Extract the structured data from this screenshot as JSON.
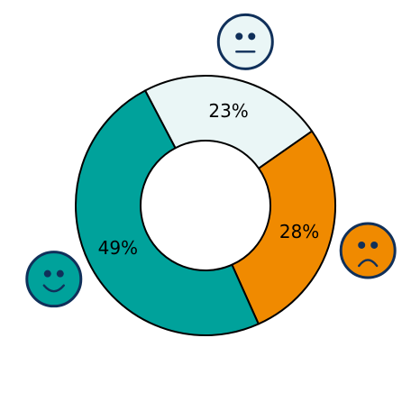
{
  "chart_data": {
    "type": "pie",
    "variant": "donut",
    "slices": [
      {
        "label": "23%",
        "value": 23,
        "color": "#eaf6f6",
        "icon": "neutral-face-icon"
      },
      {
        "label": "28%",
        "value": 28,
        "color": "#f08a00",
        "icon": "sad-face-icon"
      },
      {
        "label": "49%",
        "value": 49,
        "color": "#00a29b",
        "icon": "happy-face-icon"
      }
    ],
    "title": "",
    "legend": "none",
    "icon_stroke_color": "#10305a",
    "icon_fill_colors": {
      "neutral-face-icon": "#eaf6f6",
      "sad-face-icon": "#f08a00",
      "happy-face-icon": "#00a29b"
    }
  }
}
